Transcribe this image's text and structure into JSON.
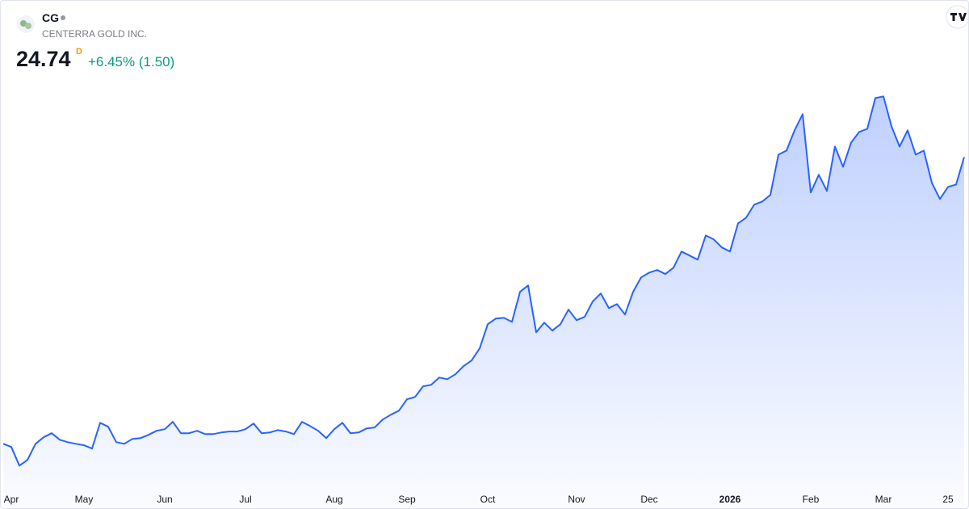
{
  "header": {
    "symbol": "CG",
    "name": "CENTERRA GOLD INC.",
    "price": "24.74",
    "interval": "D",
    "change": "+6.45% (1.50)"
  },
  "chart_data": {
    "type": "line",
    "color": "#2962ff",
    "ylim": [
      6.8,
      29.3
    ],
    "categories": [
      null,
      "Apr",
      null,
      null,
      null,
      null,
      null,
      null,
      null,
      null,
      "May",
      null,
      null,
      null,
      null,
      null,
      null,
      null,
      null,
      null,
      "Jun",
      null,
      null,
      null,
      null,
      null,
      null,
      null,
      null,
      null,
      "Jul",
      null,
      null,
      null,
      null,
      null,
      null,
      null,
      null,
      null,
      null,
      "Aug",
      null,
      null,
      null,
      null,
      null,
      null,
      null,
      null,
      "Sep",
      null,
      null,
      null,
      null,
      null,
      null,
      null,
      null,
      null,
      "Oct",
      null,
      null,
      null,
      null,
      null,
      null,
      null,
      null,
      null,
      null,
      "Nov",
      null,
      null,
      null,
      null,
      null,
      null,
      null,
      null,
      "Dec",
      null,
      null,
      null,
      null,
      null,
      null,
      null,
      null,
      null,
      "2026",
      null,
      null,
      null,
      null,
      null,
      null,
      null,
      null,
      null,
      "Feb",
      null,
      null,
      null,
      null,
      null,
      null,
      null,
      null,
      "Mar",
      null,
      null,
      null,
      null,
      null,
      null,
      null,
      "25",
      null,
      null
    ],
    "values": [
      9.08,
      8.91,
      7.89,
      8.2,
      9.08,
      9.44,
      9.66,
      9.3,
      9.17,
      9.08,
      9.0,
      8.82,
      10.23,
      10.01,
      9.17,
      9.08,
      9.35,
      9.39,
      9.57,
      9.79,
      9.88,
      10.28,
      9.66,
      9.66,
      9.79,
      9.61,
      9.61,
      9.7,
      9.75,
      9.75,
      9.88,
      10.19,
      9.66,
      9.7,
      9.83,
      9.75,
      9.61,
      10.28,
      10.05,
      9.79,
      9.39,
      9.88,
      10.23,
      9.66,
      9.7,
      9.92,
      9.97,
      10.41,
      10.67,
      10.89,
      11.51,
      11.64,
      12.22,
      12.3,
      12.7,
      12.61,
      12.88,
      13.32,
      13.63,
      14.29,
      15.61,
      15.92,
      15.96,
      15.74,
      17.38,
      17.73,
      15.17,
      15.7,
      15.26,
      15.61,
      16.41,
      15.83,
      16.01,
      16.85,
      17.29,
      16.49,
      16.71,
      16.14,
      17.38,
      18.17,
      18.43,
      18.57,
      18.35,
      18.7,
      19.58,
      19.36,
      19.14,
      20.46,
      20.24,
      19.8,
      19.58,
      21.12,
      21.43,
      22.14,
      22.31,
      22.67,
      24.87,
      25.09,
      26.2,
      27.08,
      22.8,
      23.77,
      22.89,
      25.31,
      24.21,
      25.53,
      26.11,
      26.28,
      27.96,
      28.05,
      26.42,
      25.31,
      26.2,
      24.87,
      25.09,
      23.33,
      22.45,
      23.11,
      23.24,
      24.74
    ]
  }
}
